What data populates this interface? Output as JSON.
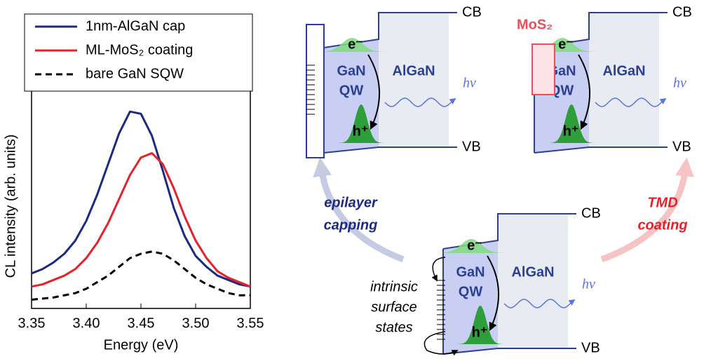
{
  "chart_data": {
    "type": "line",
    "xlabel": "Energy (eV)",
    "ylabel": "CL intensity (arb. units)",
    "x": [
      3.35,
      3.36,
      3.37,
      3.38,
      3.39,
      3.4,
      3.41,
      3.42,
      3.43,
      3.44,
      3.45,
      3.46,
      3.47,
      3.48,
      3.49,
      3.5,
      3.51,
      3.52,
      3.53,
      3.54,
      3.55
    ],
    "series": [
      {
        "name": "1nm-AlGaN cap",
        "color": "#1c2a80",
        "dash": false,
        "values": [
          0.16,
          0.18,
          0.21,
          0.25,
          0.31,
          0.4,
          0.52,
          0.66,
          0.8,
          0.9,
          0.89,
          0.79,
          0.63,
          0.46,
          0.33,
          0.24,
          0.19,
          0.15,
          0.13,
          0.11,
          0.1
        ]
      },
      {
        "name": "ML-MoS₂ coating",
        "color": "#e8202a",
        "dash": false,
        "values": [
          0.1,
          0.11,
          0.13,
          0.15,
          0.18,
          0.23,
          0.3,
          0.39,
          0.5,
          0.61,
          0.69,
          0.71,
          0.66,
          0.55,
          0.42,
          0.31,
          0.23,
          0.17,
          0.14,
          0.12,
          0.1
        ]
      },
      {
        "name": "bare GaN SQW",
        "color": "#000000",
        "dash": true,
        "values": [
          0.04,
          0.045,
          0.05,
          0.06,
          0.07,
          0.09,
          0.12,
          0.15,
          0.19,
          0.23,
          0.25,
          0.26,
          0.25,
          0.22,
          0.18,
          0.14,
          0.11,
          0.09,
          0.07,
          0.06,
          0.06
        ]
      }
    ],
    "xlim": [
      3.35,
      3.55
    ],
    "xticks": [
      3.35,
      {
        "value": 3.4,
        "label": "3.40"
      },
      3.45,
      {
        "value": 3.5,
        "label": "3.50"
      },
      3.55
    ],
    "ylim": [
      0,
      1
    ],
    "legend": "top"
  },
  "diagrams": [
    {
      "cb": "CB",
      "vb": "VB",
      "electron": "e⁻",
      "hole": "h⁺",
      "well": [
        "GaN",
        "QW"
      ],
      "barrier": "AlGaN",
      "photon": "hν"
    },
    {
      "cb": "CB",
      "vb": "VB",
      "electron": "e⁻",
      "hole": "h⁺",
      "well": [
        "GaN",
        "QW"
      ],
      "barrier": "AlGaN",
      "photon": "hν",
      "coating": "MoS₂"
    },
    {
      "cb": "CB",
      "vb": "VB",
      "electron": "e⁻",
      "hole": "h⁺",
      "well": [
        "GaN",
        "QW"
      ],
      "barrier": "AlGaN",
      "photon": "hν",
      "surface_states": [
        "intrinsic",
        "surface",
        "states"
      ]
    }
  ],
  "arrows": [
    {
      "label": [
        "epilayer",
        "capping"
      ]
    },
    {
      "label": [
        "TMD",
        "coating"
      ]
    }
  ]
}
